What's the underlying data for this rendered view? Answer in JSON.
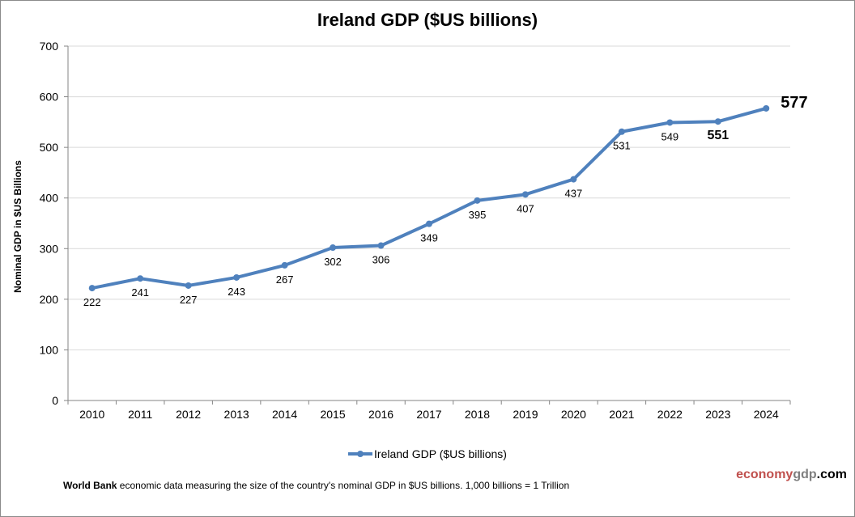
{
  "chart_data": {
    "type": "line",
    "title": "Ireland GDP ($US billions)",
    "xlabel": "",
    "ylabel": "Nominal GDP in $US  Billions",
    "categories": [
      "2010",
      "2011",
      "2012",
      "2013",
      "2014",
      "2015",
      "2016",
      "2017",
      "2018",
      "2019",
      "2020",
      "2021",
      "2022",
      "2023",
      "2024"
    ],
    "series": [
      {
        "name": "Ireland GDP ($US billions)",
        "color": "#4f81bd",
        "values": [
          222,
          241,
          227,
          243,
          267,
          302,
          306,
          349,
          395,
          407,
          437,
          531,
          549,
          551,
          577
        ]
      }
    ],
    "data_labels": [
      "222",
      "241",
      "227",
      "243",
      "267",
      "302",
      "306",
      "349",
      "395",
      "407",
      "437",
      "531",
      "549",
      "551",
      "577"
    ],
    "emphasized_labels": [
      "551",
      "577"
    ],
    "ylim": [
      0,
      700
    ],
    "yticks": [
      0,
      100,
      200,
      300,
      400,
      500,
      600,
      700
    ],
    "ytick_labels": [
      "0",
      "100",
      "200",
      "300",
      "400",
      "500",
      "600",
      "700"
    ],
    "grid": true,
    "legend": "bottom-center"
  },
  "footnote": {
    "bold": "World Bank",
    "text": " economic data  measuring the size of the country's nominal  GDP in $US billions. 1,000 billions = 1 Trillion"
  },
  "brand": {
    "part1": "economy",
    "part2": "gdp",
    "part3": ".com"
  }
}
